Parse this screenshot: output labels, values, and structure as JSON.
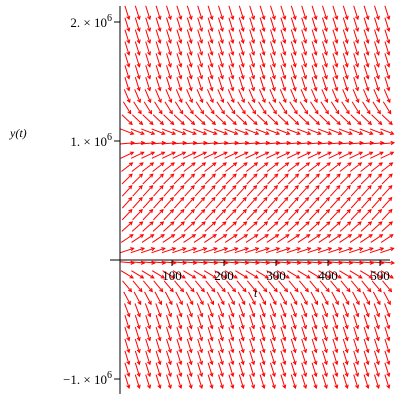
{
  "chart_data": {
    "type": "direction-field",
    "title": "",
    "xlabel": "t",
    "ylabel": "y(t)",
    "x_range": [
      0,
      510
    ],
    "y_range": [
      -1080000,
      2120000
    ],
    "grid": false,
    "arrow_color": "#ff0000",
    "x_ticks": [
      {
        "value": 100,
        "label": "100"
      },
      {
        "value": 200,
        "label": "200"
      },
      {
        "value": 300,
        "label": "300"
      },
      {
        "value": 400,
        "label": "400"
      },
      {
        "value": 500,
        "label": "500"
      }
    ],
    "y_ticks": [
      {
        "value": 2000000,
        "mantissa": "2. × 10",
        "exponent": "6"
      },
      {
        "value": 1000000,
        "mantissa": "1. × 10",
        "exponent": "6"
      },
      {
        "value": -1000000,
        "mantissa": "−1. × 10",
        "exponent": "6"
      }
    ],
    "field": {
      "equilibria": [
        0,
        1000000
      ],
      "t_samples": [
        0,
        20,
        40,
        60,
        80,
        100,
        120,
        140,
        160,
        180,
        200,
        220,
        240,
        260,
        280,
        300,
        320,
        340,
        360,
        380,
        400,
        420,
        440,
        460,
        480,
        500
      ],
      "y_samples": [
        2080000,
        1980000,
        1880000,
        1780000,
        1680000,
        1580000,
        1480000,
        1380000,
        1280000,
        1180000,
        1080000,
        980000,
        880000,
        780000,
        680000,
        580000,
        480000,
        380000,
        280000,
        180000,
        80000,
        -20000,
        -120000,
        -220000,
        -320000,
        -420000,
        -520000,
        -620000,
        -720000,
        -820000,
        -920000,
        -1020000
      ]
    }
  }
}
